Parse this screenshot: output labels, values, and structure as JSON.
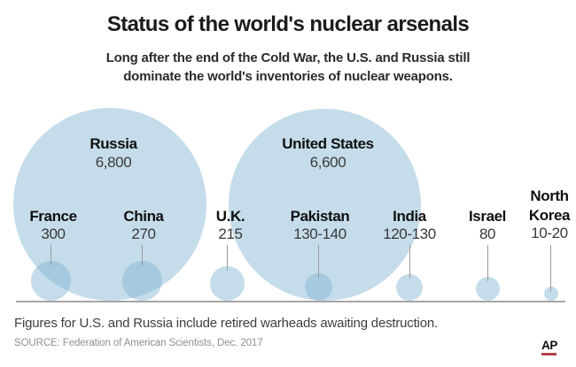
{
  "title": "Status of the world's nuclear arsenals",
  "subtitle": {
    "line1": "Long after the end of the Cold War, the U.S. and Russia still",
    "line2": "dominate the world's inventories of nuclear weapons."
  },
  "chart_data": {
    "type": "bubble",
    "title": "Status of the world's nuclear arsenals",
    "layout": "bubbles rest on a common baseline, area proportional to warhead count",
    "bubble_rgba": "rgba(127,178,209,0.45)",
    "bubble_color": "#7fb2d1",
    "points": [
      {
        "label": "Russia",
        "value_text": "6,800",
        "value": 6800
      },
      {
        "label": "United States",
        "value_text": "6,600",
        "value": 6600
      },
      {
        "label": "France",
        "value_text": "300",
        "value": 300
      },
      {
        "label": "China",
        "value_text": "270",
        "value": 270
      },
      {
        "label": "U.K.",
        "value_text": "215",
        "value": 215
      },
      {
        "label": "Pakistan",
        "value_text": "130-140",
        "value_min": 130,
        "value_max": 140
      },
      {
        "label": "India",
        "value_text": "120-130",
        "value_min": 120,
        "value_max": 130
      },
      {
        "label": "Israel",
        "value_text": "80",
        "value": 80
      },
      {
        "label": "North Korea",
        "value_text": "10-20",
        "value_min": 10,
        "value_max": 20
      }
    ]
  },
  "footer": {
    "note": "Figures for U.S. and Russia include retired warheads awaiting destruction.",
    "source": "SOURCE: Federation of American Scientists, Dec. 2017",
    "brand": "AP",
    "brand_rule_color": "#b0404a"
  }
}
